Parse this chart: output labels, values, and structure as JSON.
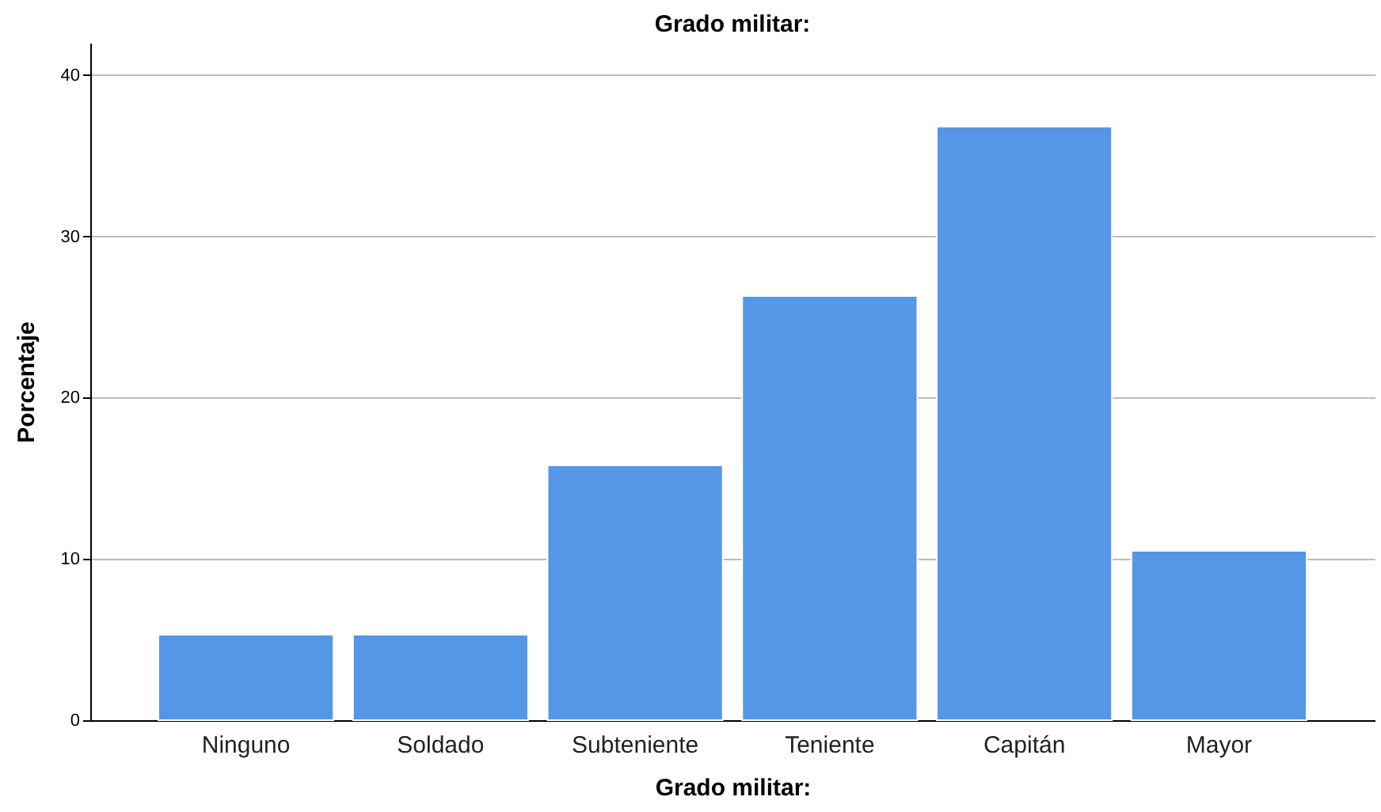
{
  "chart_data": {
    "type": "bar",
    "title": "Grado militar:",
    "xlabel": "Grado militar:",
    "ylabel": "Porcentaje",
    "categories": [
      "Ninguno",
      "Soldado",
      "Subteniente",
      "Teniente",
      "Capitán",
      "Mayor"
    ],
    "values": [
      5.3,
      5.3,
      15.8,
      26.3,
      36.8,
      10.5
    ],
    "color": "#5596e6",
    "ylim": [
      0,
      42
    ],
    "yticks": [
      0,
      10,
      20,
      30,
      40
    ],
    "grid": "y"
  }
}
